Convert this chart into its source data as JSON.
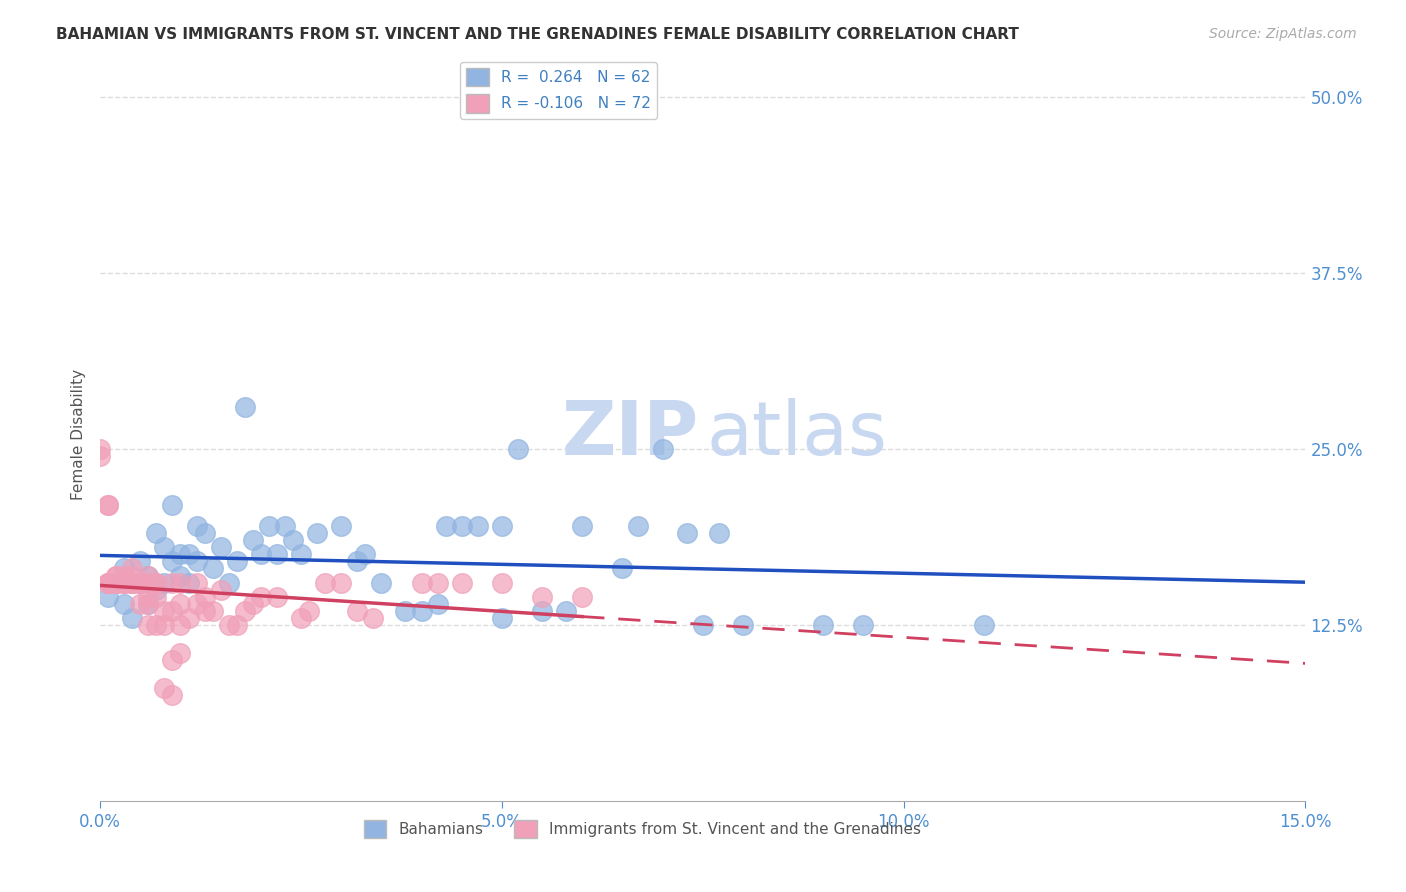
{
  "title": "BAHAMIAN VS IMMIGRANTS FROM ST. VINCENT AND THE GRENADINES FEMALE DISABILITY CORRELATION CHART",
  "source": "Source: ZipAtlas.com",
  "ylabel_label": "Female Disability",
  "ytick_labels": [
    "12.5%",
    "25.0%",
    "37.5%",
    "50.0%"
  ],
  "xmin": 0.0,
  "xmax": 0.15,
  "ymin": 0.0,
  "ymax": 0.52,
  "R_blue": 0.264,
  "N_blue": 62,
  "R_pink": -0.106,
  "N_pink": 72,
  "blue_color": "#91b4e0",
  "pink_color": "#f0a0b8",
  "blue_line_color": "#2050c0",
  "pink_line_color": "#d04060",
  "axis_color": "#5090d0",
  "title_color": "#333333",
  "legend_R_color": "#4080c0",
  "watermark_color": "#c8d8f0",
  "grid_color": "#dddddd",
  "blue_scatter": [
    [
      0.001,
      0.145
    ],
    [
      0.002,
      0.155
    ],
    [
      0.003,
      0.14
    ],
    [
      0.003,
      0.165
    ],
    [
      0.004,
      0.13
    ],
    [
      0.004,
      0.155
    ],
    [
      0.005,
      0.17
    ],
    [
      0.005,
      0.155
    ],
    [
      0.006,
      0.14
    ],
    [
      0.006,
      0.16
    ],
    [
      0.007,
      0.19
    ],
    [
      0.007,
      0.15
    ],
    [
      0.008,
      0.18
    ],
    [
      0.008,
      0.155
    ],
    [
      0.009,
      0.21
    ],
    [
      0.009,
      0.17
    ],
    [
      0.01,
      0.175
    ],
    [
      0.01,
      0.16
    ],
    [
      0.011,
      0.155
    ],
    [
      0.011,
      0.175
    ],
    [
      0.012,
      0.195
    ],
    [
      0.012,
      0.17
    ],
    [
      0.013,
      0.19
    ],
    [
      0.014,
      0.165
    ],
    [
      0.015,
      0.18
    ],
    [
      0.016,
      0.155
    ],
    [
      0.017,
      0.17
    ],
    [
      0.018,
      0.28
    ],
    [
      0.019,
      0.185
    ],
    [
      0.02,
      0.175
    ],
    [
      0.021,
      0.195
    ],
    [
      0.022,
      0.175
    ],
    [
      0.023,
      0.195
    ],
    [
      0.024,
      0.185
    ],
    [
      0.025,
      0.175
    ],
    [
      0.027,
      0.19
    ],
    [
      0.03,
      0.195
    ],
    [
      0.032,
      0.17
    ],
    [
      0.033,
      0.175
    ],
    [
      0.035,
      0.155
    ],
    [
      0.038,
      0.135
    ],
    [
      0.04,
      0.135
    ],
    [
      0.042,
      0.14
    ],
    [
      0.043,
      0.195
    ],
    [
      0.045,
      0.195
    ],
    [
      0.047,
      0.195
    ],
    [
      0.05,
      0.195
    ],
    [
      0.05,
      0.13
    ],
    [
      0.052,
      0.25
    ],
    [
      0.055,
      0.135
    ],
    [
      0.058,
      0.135
    ],
    [
      0.06,
      0.195
    ],
    [
      0.065,
      0.165
    ],
    [
      0.067,
      0.195
    ],
    [
      0.07,
      0.25
    ],
    [
      0.073,
      0.19
    ],
    [
      0.075,
      0.125
    ],
    [
      0.077,
      0.19
    ],
    [
      0.08,
      0.125
    ],
    [
      0.09,
      0.125
    ],
    [
      0.095,
      0.125
    ],
    [
      0.11,
      0.125
    ]
  ],
  "pink_scatter": [
    [
      0.0,
      0.25
    ],
    [
      0.0,
      0.245
    ],
    [
      0.001,
      0.21
    ],
    [
      0.001,
      0.21
    ],
    [
      0.001,
      0.155
    ],
    [
      0.001,
      0.155
    ],
    [
      0.001,
      0.155
    ],
    [
      0.001,
      0.155
    ],
    [
      0.002,
      0.155
    ],
    [
      0.002,
      0.155
    ],
    [
      0.002,
      0.155
    ],
    [
      0.002,
      0.16
    ],
    [
      0.002,
      0.16
    ],
    [
      0.003,
      0.155
    ],
    [
      0.003,
      0.155
    ],
    [
      0.003,
      0.155
    ],
    [
      0.003,
      0.155
    ],
    [
      0.003,
      0.16
    ],
    [
      0.004,
      0.155
    ],
    [
      0.004,
      0.155
    ],
    [
      0.004,
      0.155
    ],
    [
      0.004,
      0.16
    ],
    [
      0.004,
      0.165
    ],
    [
      0.005,
      0.14
    ],
    [
      0.005,
      0.155
    ],
    [
      0.005,
      0.155
    ],
    [
      0.005,
      0.155
    ],
    [
      0.006,
      0.125
    ],
    [
      0.006,
      0.14
    ],
    [
      0.006,
      0.145
    ],
    [
      0.006,
      0.155
    ],
    [
      0.006,
      0.16
    ],
    [
      0.007,
      0.125
    ],
    [
      0.007,
      0.145
    ],
    [
      0.007,
      0.155
    ],
    [
      0.007,
      0.155
    ],
    [
      0.008,
      0.08
    ],
    [
      0.008,
      0.125
    ],
    [
      0.008,
      0.135
    ],
    [
      0.009,
      0.075
    ],
    [
      0.009,
      0.1
    ],
    [
      0.009,
      0.135
    ],
    [
      0.009,
      0.155
    ],
    [
      0.01,
      0.105
    ],
    [
      0.01,
      0.125
    ],
    [
      0.01,
      0.14
    ],
    [
      0.01,
      0.155
    ],
    [
      0.011,
      0.13
    ],
    [
      0.012,
      0.14
    ],
    [
      0.012,
      0.155
    ],
    [
      0.013,
      0.135
    ],
    [
      0.013,
      0.145
    ],
    [
      0.014,
      0.135
    ],
    [
      0.015,
      0.15
    ],
    [
      0.016,
      0.125
    ],
    [
      0.017,
      0.125
    ],
    [
      0.018,
      0.135
    ],
    [
      0.019,
      0.14
    ],
    [
      0.02,
      0.145
    ],
    [
      0.022,
      0.145
    ],
    [
      0.025,
      0.13
    ],
    [
      0.026,
      0.135
    ],
    [
      0.028,
      0.155
    ],
    [
      0.03,
      0.155
    ],
    [
      0.032,
      0.135
    ],
    [
      0.034,
      0.13
    ],
    [
      0.04,
      0.155
    ],
    [
      0.042,
      0.155
    ],
    [
      0.045,
      0.155
    ],
    [
      0.05,
      0.155
    ],
    [
      0.055,
      0.145
    ],
    [
      0.06,
      0.145
    ]
  ]
}
